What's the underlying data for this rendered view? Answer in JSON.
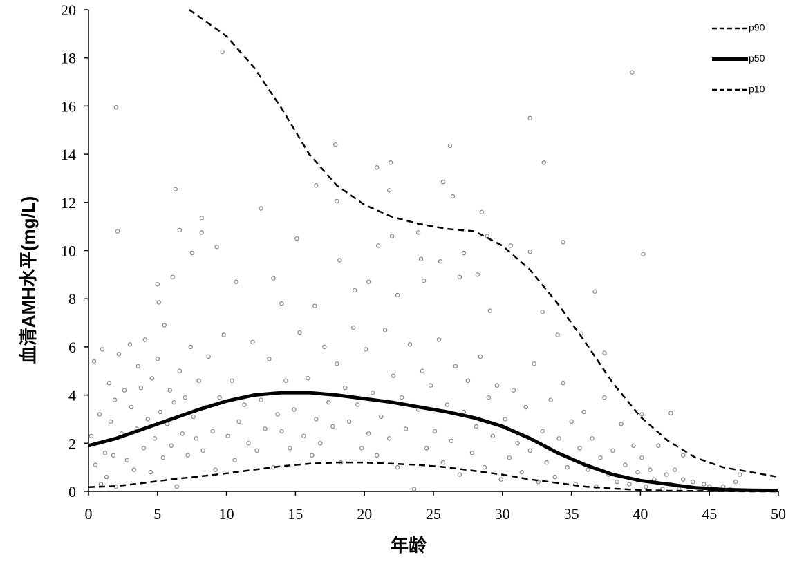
{
  "chart_data": {
    "type": "scatter",
    "xlabel": "年龄",
    "ylabel": "血清AMH水平(mg/L)",
    "xlim": [
      0,
      50
    ],
    "xticks": [
      0,
      5,
      10,
      15,
      20,
      25,
      30,
      35,
      40,
      45,
      50
    ],
    "ylim": [
      0,
      20
    ],
    "yticks": [
      0,
      2,
      4,
      6,
      8,
      10,
      12,
      14,
      16,
      18,
      20
    ],
    "grid": false,
    "legend": "top-right",
    "points": {
      "color": "#8c8c8c",
      "x": [
        0.2,
        0.4,
        0.5,
        0.8,
        0.9,
        1.0,
        1.2,
        1.3,
        1.5,
        1.6,
        1.8,
        1.9,
        2.0,
        2.2,
        2.4,
        2.6,
        2.8,
        3.0,
        3.1,
        3.3,
        3.5,
        3.6,
        3.8,
        4.0,
        4.1,
        4.3,
        4.5,
        4.6,
        4.8,
        5.0,
        5.2,
        5.4,
        5.5,
        5.7,
        5.9,
        6.0,
        6.2,
        6.4,
        6.6,
        6.8,
        7.0,
        7.2,
        7.4,
        7.6,
        7.8,
        8.0,
        8.3,
        8.5,
        8.7,
        9.0,
        9.2,
        9.5,
        9.8,
        10.1,
        10.4,
        10.6,
        10.9,
        11.3,
        11.6,
        11.9,
        12.2,
        12.5,
        12.8,
        13.1,
        13.4,
        13.7,
        14.0,
        14.3,
        14.6,
        14.9,
        15.3,
        15.6,
        15.9,
        16.2,
        16.5,
        16.8,
        17.1,
        17.4,
        17.7,
        18.0,
        18.3,
        18.6,
        18.9,
        19.2,
        19.5,
        19.8,
        20.1,
        20.3,
        20.6,
        20.9,
        21.2,
        21.5,
        21.8,
        22.1,
        22.4,
        22.7,
        23.0,
        23.3,
        23.6,
        23.9,
        24.2,
        24.5,
        24.8,
        25.1,
        25.4,
        25.7,
        26.0,
        26.3,
        26.6,
        26.9,
        27.2,
        27.5,
        27.8,
        28.1,
        28.4,
        28.7,
        29.0,
        29.3,
        29.6,
        29.9,
        30.2,
        30.5,
        30.8,
        31.1,
        31.4,
        31.7,
        32.0,
        32.3,
        32.6,
        32.9,
        33.2,
        33.5,
        33.8,
        34.1,
        34.4,
        34.7,
        35.0,
        35.3,
        35.6,
        35.9,
        36.2,
        36.5,
        36.8,
        37.1,
        37.4,
        37.7,
        38.0,
        38.3,
        38.6,
        38.9,
        39.2,
        39.5,
        39.8,
        40.1,
        40.4,
        40.7,
        41.0,
        41.3,
        41.6,
        41.9,
        42.2,
        42.5,
        42.8,
        43.1,
        43.4,
        43.8,
        44.2,
        44.6,
        45.0,
        45.5,
        46.0,
        46.5,
        46.9,
        47.2,
        2.0,
        2.1,
        6.3,
        9.7,
        6.6,
        8.2,
        8.2,
        7.5,
        9.3,
        10.7,
        12.5,
        13.4,
        15.1,
        16.5,
        17.9,
        18.0,
        18.2,
        20.9,
        21.9,
        21.8,
        21.0,
        22.0,
        26.2,
        25.7,
        26.4,
        28.5,
        28.9,
        32.0,
        33.0,
        32.0,
        34.4,
        39.4,
        40.2,
        36.7,
        30.6,
        24.1,
        25.5,
        27.2,
        23.9,
        5.0,
        5.1,
        6.1,
        14.0,
        16.4,
        19.3,
        20.3,
        22.4,
        24.3,
        26.9,
        28.2,
        29.1,
        32.9,
        34.0,
        35.7,
        37.4,
        40.1,
        42.2,
        43.1
      ],
      "values": [
        2.3,
        5.4,
        1.1,
        3.2,
        0.3,
        5.9,
        1.6,
        0.6,
        4.5,
        2.9,
        1.5,
        3.8,
        0.2,
        5.7,
        2.4,
        4.2,
        1.3,
        6.1,
        3.5,
        0.9,
        2.6,
        5.2,
        4.3,
        1.8,
        6.3,
        3.0,
        0.8,
        4.7,
        2.2,
        5.5,
        3.3,
        1.4,
        6.9,
        2.8,
        4.2,
        1.9,
        3.7,
        0.2,
        5.0,
        2.4,
        3.9,
        1.5,
        6.0,
        3.1,
        2.2,
        4.6,
        1.7,
        3.5,
        5.6,
        2.5,
        0.9,
        3.9,
        6.5,
        2.3,
        4.6,
        1.3,
        2.9,
        3.6,
        2.0,
        6.2,
        1.7,
        3.8,
        2.6,
        5.5,
        1.0,
        3.2,
        2.5,
        4.6,
        1.8,
        3.4,
        6.6,
        2.3,
        4.7,
        1.5,
        3.0,
        2.0,
        6.0,
        3.7,
        2.7,
        5.3,
        1.2,
        4.3,
        2.9,
        6.8,
        3.6,
        1.8,
        5.9,
        2.4,
        4.1,
        1.5,
        3.1,
        6.7,
        2.2,
        4.8,
        1.0,
        3.9,
        2.6,
        6.1,
        0.1,
        3.4,
        5.0,
        1.8,
        4.4,
        2.5,
        6.3,
        1.2,
        3.6,
        2.1,
        5.2,
        0.7,
        3.3,
        4.6,
        1.6,
        2.7,
        5.6,
        1.0,
        3.9,
        2.3,
        4.4,
        0.5,
        3.0,
        1.4,
        4.2,
        2.0,
        0.8,
        3.5,
        1.7,
        5.3,
        0.4,
        2.5,
        1.2,
        3.8,
        0.6,
        2.2,
        4.5,
        1.0,
        2.9,
        0.3,
        1.8,
        3.3,
        0.9,
        2.2,
        0.2,
        1.4,
        3.9,
        0.7,
        1.7,
        0.4,
        2.8,
        1.1,
        0.3,
        1.9,
        0.8,
        1.4,
        0.2,
        0.9,
        0.5,
        1.9,
        0.1,
        0.7,
        0.3,
        0.9,
        0.1,
        0.5,
        0.2,
        0.4,
        0.1,
        0.3,
        0.2,
        0.1,
        0.2,
        0.1,
        0.4,
        0.7,
        15.95,
        10.8,
        12.55,
        18.25,
        10.85,
        11.35,
        10.75,
        9.9,
        10.15,
        8.7,
        11.75,
        8.85,
        10.5,
        12.7,
        14.4,
        12.05,
        9.6,
        13.45,
        13.65,
        12.5,
        10.2,
        10.6,
        14.35,
        12.85,
        12.25,
        11.6,
        10.6,
        15.5,
        13.65,
        9.95,
        10.35,
        17.4,
        9.85,
        8.3,
        10.2,
        9.65,
        9.55,
        9.9,
        10.75,
        8.6,
        7.85,
        8.9,
        7.8,
        7.7,
        8.35,
        8.7,
        8.15,
        8.75,
        8.9,
        9.0,
        7.5,
        7.45,
        6.5,
        6.55,
        5.75,
        3.2,
        3.25,
        1.5
      ]
    },
    "series": [
      {
        "name": "p90",
        "color": "#000000",
        "dashed": true,
        "width": 2.5,
        "x": [
          7.3,
          10,
          12,
          14,
          16,
          18,
          20,
          22,
          24,
          26,
          28,
          30,
          32,
          34,
          36,
          38,
          40,
          42,
          44,
          46,
          48,
          50
        ],
        "values": [
          20,
          18.9,
          17.6,
          15.9,
          14.0,
          12.7,
          11.9,
          11.4,
          11.1,
          10.9,
          10.8,
          10.2,
          9.2,
          7.8,
          6.2,
          4.5,
          3.1,
          2.1,
          1.4,
          1.0,
          0.8,
          0.6
        ]
      },
      {
        "name": "p50",
        "color": "#000000",
        "dashed": false,
        "width": 5,
        "x": [
          0,
          2,
          4,
          6,
          8,
          10,
          12,
          14,
          16,
          18,
          20,
          22,
          24,
          26,
          28,
          30,
          32,
          34,
          36,
          38,
          40,
          42,
          44,
          46,
          48,
          50
        ],
        "values": [
          1.9,
          2.2,
          2.6,
          3.0,
          3.4,
          3.75,
          4.0,
          4.1,
          4.1,
          4.0,
          3.85,
          3.7,
          3.5,
          3.3,
          3.05,
          2.7,
          2.2,
          1.6,
          1.1,
          0.7,
          0.45,
          0.3,
          0.15,
          0.08,
          0.05,
          0.04
        ]
      },
      {
        "name": "p10",
        "color": "#000000",
        "dashed": true,
        "width": 2.5,
        "x": [
          0,
          2,
          4,
          6,
          8,
          10,
          12,
          14,
          16,
          18,
          20,
          22,
          24,
          26,
          28,
          30,
          32,
          34,
          36,
          38,
          40,
          42,
          44,
          46,
          48,
          50
        ],
        "values": [
          0.18,
          0.22,
          0.35,
          0.5,
          0.62,
          0.75,
          0.9,
          1.05,
          1.15,
          1.2,
          1.2,
          1.15,
          1.1,
          1.0,
          0.85,
          0.7,
          0.5,
          0.35,
          0.2,
          0.12,
          0.06,
          0.03,
          0.02,
          0.01,
          0,
          0
        ]
      }
    ]
  }
}
